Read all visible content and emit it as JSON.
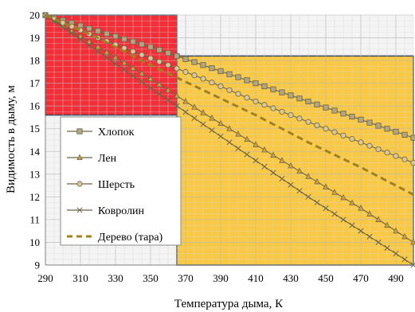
{
  "chart_data": {
    "type": "line",
    "xlabel": "Температура дыма, К",
    "ylabel": "Видимость в дыму, м",
    "xlim": [
      290,
      500
    ],
    "ylim": [
      9,
      20
    ],
    "xticks": [
      290,
      310,
      330,
      350,
      370,
      390,
      410,
      430,
      450,
      470,
      490
    ],
    "yticks": [
      9,
      10,
      11,
      12,
      13,
      14,
      15,
      16,
      17,
      18,
      19,
      20
    ],
    "grid": "minor and major, light grey",
    "legend_position": "left-middle",
    "highlight_regions": [
      {
        "name": "red-zone",
        "x": [
          290,
          365
        ],
        "y": [
          15.6,
          20
        ],
        "color": "#f2232b"
      },
      {
        "name": "yellow-zone",
        "x": [
          365,
          500
        ],
        "y": [
          9,
          18.2
        ],
        "color": "#fac63a"
      }
    ],
    "series": [
      {
        "name": "Хлопок",
        "marker": "square",
        "dash": "solid",
        "color": "#6b6445",
        "x": [
          290,
          320,
          350,
          380,
          410,
          440,
          470,
          500
        ],
        "y": [
          20.0,
          19.3,
          18.6,
          17.8,
          17.0,
          16.2,
          15.4,
          14.6
        ]
      },
      {
        "name": "Лен",
        "marker": "triangle",
        "dash": "solid",
        "color": "#6b6445",
        "x": [
          290,
          320,
          350,
          380,
          410,
          440,
          470,
          500
        ],
        "y": [
          20.0,
          18.6,
          17.2,
          15.7,
          14.3,
          12.9,
          11.5,
          10.0
        ]
      },
      {
        "name": "Шерсть",
        "marker": "circle",
        "dash": "solid",
        "color": "#6b6445",
        "x": [
          290,
          320,
          350,
          380,
          410,
          440,
          470,
          500
        ],
        "y": [
          20.0,
          19.0,
          18.1,
          17.2,
          16.2,
          15.3,
          14.4,
          13.5
        ]
      },
      {
        "name": "Ковролин",
        "marker": "x",
        "dash": "solid",
        "color": "#6b6445",
        "x": [
          290,
          320,
          350,
          380,
          410,
          440,
          470,
          500
        ],
        "y": [
          20.0,
          18.4,
          16.8,
          15.2,
          13.6,
          12.0,
          10.5,
          9.0
        ]
      },
      {
        "name": "Дерево (тара)",
        "marker": "none",
        "dash": "dashed",
        "color": "#a08020",
        "x": [
          290,
          320,
          350,
          380,
          410,
          440,
          470,
          500
        ],
        "y": [
          20.0,
          19.0,
          17.8,
          16.7,
          15.6,
          14.4,
          13.3,
          12.1
        ]
      }
    ]
  }
}
